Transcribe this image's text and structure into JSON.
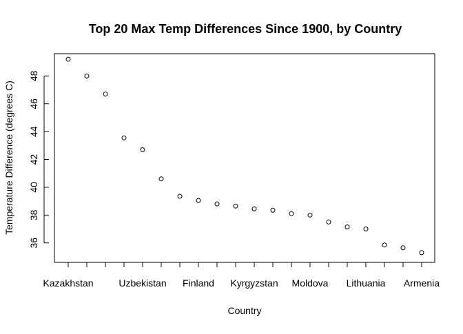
{
  "chart_data": {
    "type": "scatter",
    "title": "Top 20 Max Temp Differences Since 1900, by Country",
    "xlabel": "Country",
    "ylabel": "Temperature Difference (degrees C)",
    "x_tick_labels": [
      "Kazakhstan",
      "Uzbekistan",
      "Finland",
      "Kyrgyzstan",
      "Moldova",
      "Lithuania",
      "Armenia"
    ],
    "x_tick_label_positions": [
      1,
      5,
      8,
      11,
      14,
      17,
      20
    ],
    "x_count": 20,
    "yticks": [
      36,
      38,
      40,
      42,
      44,
      46,
      48
    ],
    "ylim": [
      34.6,
      49.6
    ],
    "values": [
      49.2,
      48.0,
      46.7,
      43.55,
      42.7,
      40.6,
      39.35,
      39.05,
      38.8,
      38.65,
      38.45,
      38.35,
      38.1,
      38.0,
      37.5,
      37.15,
      37.0,
      35.85,
      35.65,
      35.3
    ],
    "marker": "open-circle",
    "grid": false,
    "legend": "none"
  }
}
